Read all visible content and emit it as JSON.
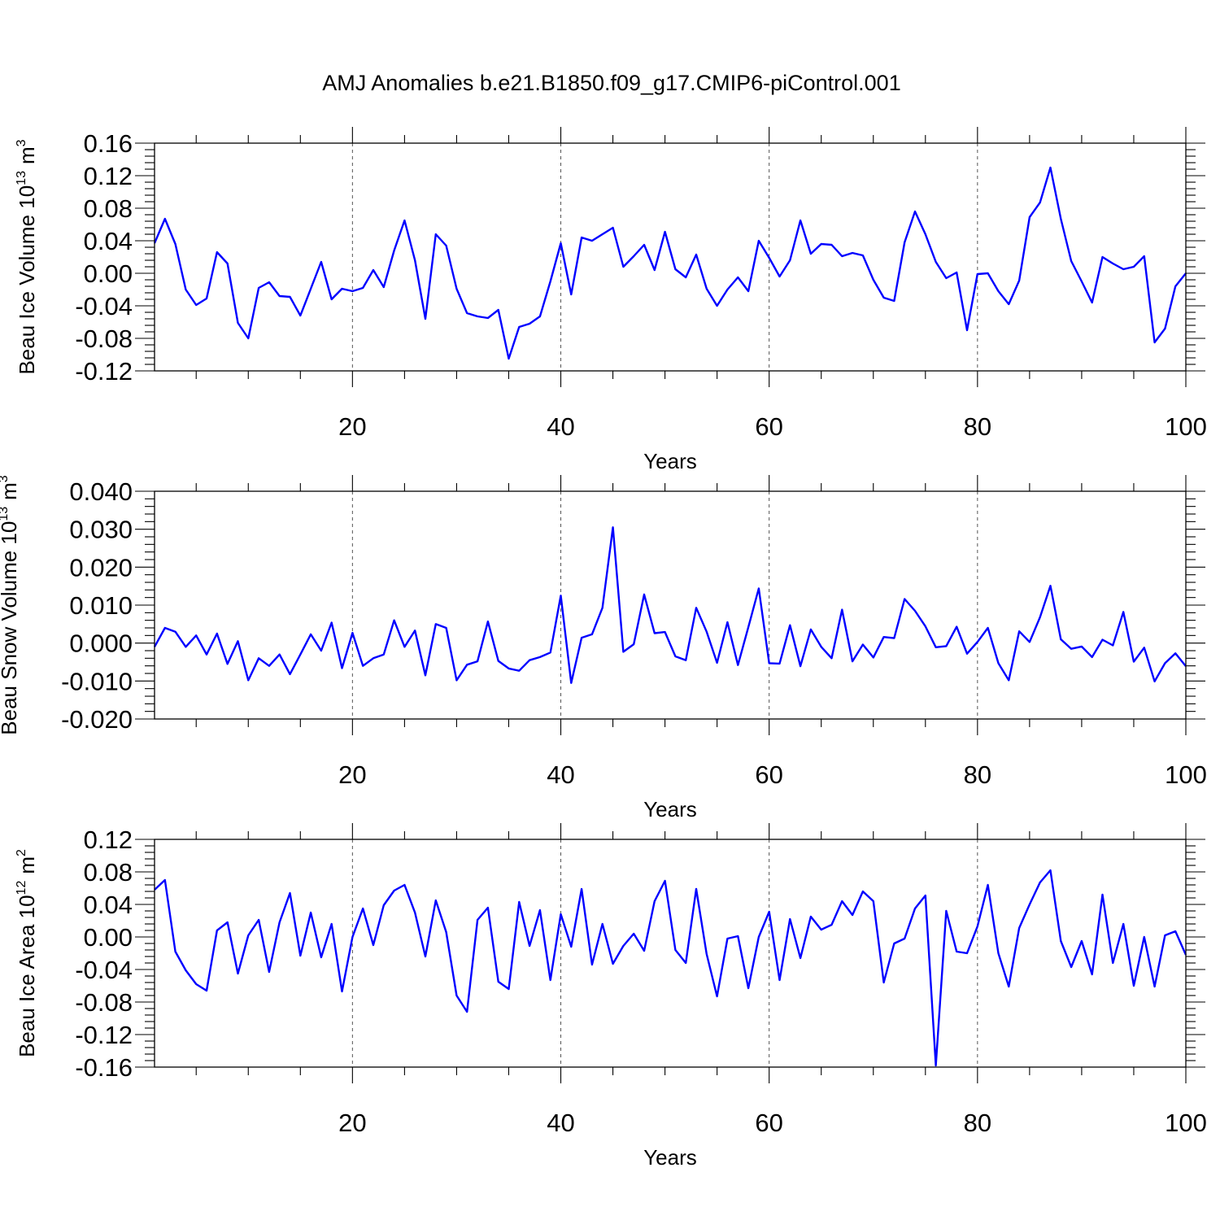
{
  "figure": {
    "title": "AMJ Anomalies b.e21.B1850.f09_g17.CMIP6-piControl.001",
    "line_color": "#0000ff"
  },
  "chart_data": [
    {
      "type": "line",
      "ylabel_main": "Beau Ice Volume 10",
      "ylabel_exp": "13",
      "ylabel_unit": "m",
      "ylabel_unit_exp": "3",
      "xlabel": "Years",
      "xlim": [
        1,
        100
      ],
      "ylim": [
        -0.12,
        0.16
      ],
      "xticks": [
        20,
        40,
        60,
        80,
        100
      ],
      "xtick_labels": [
        "20",
        "40",
        "60",
        "80",
        "100"
      ],
      "yticks": [
        -0.12,
        -0.08,
        -0.04,
        0.0,
        0.04,
        0.08,
        0.12,
        0.16
      ],
      "ytick_labels": [
        "-0.12",
        "-0.08",
        "-0.04",
        "0.00",
        "0.04",
        "0.08",
        "0.12",
        "0.16"
      ],
      "grid": "vertical dashed at major x ticks",
      "values": [
        0.037,
        0.067,
        0.036,
        -0.02,
        -0.039,
        -0.031,
        0.026,
        0.012,
        -0.061,
        -0.08,
        -0.018,
        -0.011,
        -0.028,
        -0.029,
        -0.052,
        -0.019,
        0.014,
        -0.032,
        -0.019,
        -0.022,
        -0.018,
        0.004,
        -0.017,
        0.028,
        0.065,
        0.016,
        -0.056,
        0.048,
        0.034,
        -0.019,
        -0.049,
        -0.053,
        -0.055,
        -0.045,
        -0.105,
        -0.066,
        -0.062,
        -0.053,
        -0.01,
        0.037,
        -0.026,
        0.044,
        0.04,
        0.048,
        0.056,
        0.008,
        0.021,
        0.035,
        0.004,
        0.051,
        0.005,
        -0.005,
        0.023,
        -0.019,
        -0.04,
        -0.02,
        -0.005,
        -0.022,
        0.04,
        0.019,
        -0.004,
        0.016,
        0.065,
        0.024,
        0.036,
        0.035,
        0.021,
        0.025,
        0.022,
        -0.008,
        -0.03,
        -0.034,
        0.038,
        0.076,
        0.048,
        0.014,
        -0.006,
        0.001,
        -0.07,
        -0.001,
        0.0,
        -0.022,
        -0.038,
        -0.009,
        0.069,
        0.087,
        0.13,
        0.067,
        0.015,
        -0.01,
        -0.036,
        0.02,
        0.012,
        0.005,
        0.008,
        0.021,
        -0.085,
        -0.068,
        -0.016,
        0.0
      ]
    },
    {
      "type": "line",
      "ylabel_main": "Beau Snow Volume 10",
      "ylabel_exp": "13",
      "ylabel_unit": "m",
      "ylabel_unit_exp": "3",
      "xlabel": "Years",
      "xlim": [
        1,
        100
      ],
      "ylim": [
        -0.02,
        0.04
      ],
      "xticks": [
        20,
        40,
        60,
        80,
        100
      ],
      "xtick_labels": [
        "20",
        "40",
        "60",
        "80",
        "100"
      ],
      "yticks": [
        -0.02,
        -0.01,
        0.0,
        0.01,
        0.02,
        0.03,
        0.04
      ],
      "ytick_labels": [
        "-0.020",
        "-0.010",
        "0.000",
        "0.010",
        "0.020",
        "0.030",
        "0.040"
      ],
      "grid": "vertical dashed at major x ticks",
      "values": [
        -0.001,
        0.004,
        0.003,
        -0.001,
        0.002,
        -0.003,
        0.0025,
        -0.0055,
        0.0005,
        -0.0098,
        -0.004,
        -0.006,
        -0.003,
        -0.0082,
        -0.003,
        0.0023,
        -0.002,
        0.0054,
        -0.0066,
        0.0027,
        -0.006,
        -0.004,
        -0.003,
        0.006,
        -0.001,
        0.0033,
        -0.0085,
        0.005,
        0.004,
        -0.0098,
        -0.0057,
        -0.0048,
        0.0057,
        -0.0047,
        -0.0067,
        -0.0073,
        -0.0045,
        -0.0037,
        -0.0025,
        0.0125,
        -0.0105,
        0.0014,
        0.0023,
        0.0093,
        0.0305,
        -0.0023,
        -0.0003,
        0.0128,
        0.0026,
        0.0029,
        -0.0035,
        -0.0045,
        0.0093,
        0.003,
        -0.0052,
        0.0055,
        -0.0058,
        0.0042,
        0.0144,
        -0.0053,
        -0.0054,
        0.0047,
        -0.0061,
        0.0036,
        -0.001,
        -0.004,
        0.0088,
        -0.0048,
        -0.0004,
        -0.0038,
        0.0016,
        0.0013,
        0.0116,
        0.0085,
        0.0044,
        -0.0011,
        -0.0008,
        0.0043,
        -0.0028,
        0.0003,
        0.004,
        -0.0053,
        -0.0098,
        0.0031,
        0.0003,
        0.0068,
        0.0151,
        0.001,
        -0.0015,
        -0.0009,
        -0.0037,
        0.0009,
        -0.0006,
        0.0082,
        -0.0049,
        -0.0012,
        -0.0101,
        -0.0053,
        -0.0027,
        -0.0061
      ]
    },
    {
      "type": "line",
      "ylabel_main": "Beau Ice Area 10",
      "ylabel_exp": "12",
      "ylabel_unit": "m",
      "ylabel_unit_exp": "2",
      "xlabel": "Years",
      "xlim": [
        1,
        100
      ],
      "ylim": [
        -0.16,
        0.12
      ],
      "xticks": [
        20,
        40,
        60,
        80,
        100
      ],
      "xtick_labels": [
        "20",
        "40",
        "60",
        "80",
        "100"
      ],
      "yticks": [
        -0.16,
        -0.12,
        -0.08,
        -0.04,
        0.0,
        0.04,
        0.08,
        0.12
      ],
      "ytick_labels": [
        "-0.16",
        "-0.12",
        "-0.08",
        "-0.04",
        "0.00",
        "0.04",
        "0.08",
        "0.12"
      ],
      "grid": "vertical dashed at major x ticks",
      "values": [
        0.058,
        0.07,
        -0.018,
        -0.041,
        -0.058,
        -0.066,
        0.008,
        0.018,
        -0.045,
        0.002,
        0.021,
        -0.043,
        0.018,
        0.054,
        -0.023,
        0.03,
        -0.025,
        0.016,
        -0.067,
        0.0,
        0.035,
        -0.01,
        0.039,
        0.057,
        0.064,
        0.03,
        -0.024,
        0.045,
        0.006,
        -0.072,
        -0.092,
        0.021,
        0.036,
        -0.055,
        -0.064,
        0.043,
        -0.011,
        0.033,
        -0.053,
        0.028,
        -0.012,
        0.059,
        -0.034,
        0.016,
        -0.033,
        -0.011,
        0.004,
        -0.017,
        0.044,
        0.069,
        -0.016,
        -0.032,
        0.059,
        -0.021,
        -0.073,
        -0.002,
        0.001,
        -0.063,
        0.0,
        0.031,
        -0.053,
        0.022,
        -0.026,
        0.025,
        0.009,
        0.015,
        0.044,
        0.027,
        0.056,
        0.044,
        -0.056,
        -0.008,
        -0.002,
        0.035,
        0.051,
        -0.158,
        0.032,
        -0.018,
        -0.02,
        0.013,
        0.064,
        -0.02,
        -0.061,
        0.011,
        0.04,
        0.067,
        0.082,
        -0.005,
        -0.037,
        -0.005,
        -0.046,
        0.052,
        -0.032,
        0.016,
        -0.06,
        0.0,
        -0.061,
        0.002,
        0.007,
        -0.022
      ]
    }
  ]
}
